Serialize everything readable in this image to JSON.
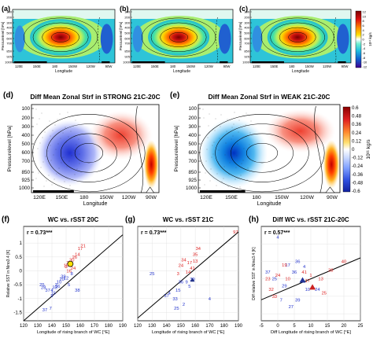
{
  "panels_top": [
    {
      "letter": "(a)",
      "title": "Mean Zonal Strf in ERA-Interim in 20C",
      "ylabel": "Pressurelevel [hPa]",
      "xlabel": "Longitude",
      "yticks": [
        "100",
        "200",
        "300",
        "400",
        "500",
        "600",
        "700",
        "850",
        "925",
        "1000"
      ],
      "xticks": [
        "120E",
        "150E",
        "180",
        "150W",
        "120W",
        "90W"
      ]
    },
    {
      "letter": "(b)",
      "title": "Mean Zonal Strf in STRONG in 20C",
      "ylabel": "Pressurelevel [hPa]",
      "xlabel": "Longitude",
      "yticks": [
        "100",
        "200",
        "300",
        "400",
        "500",
        "600",
        "700",
        "850",
        "925",
        "1000"
      ],
      "xticks": [
        "120E",
        "150E",
        "180",
        "150W",
        "120W",
        "90W"
      ]
    },
    {
      "letter": "(c)",
      "title": "Mean Zonal Strf in WEAK in 20C",
      "ylabel": "Pressurelevel [hPa]",
      "xlabel": "Longitude",
      "yticks": [
        "100",
        "200",
        "300",
        "400",
        "500",
        "600",
        "700",
        "850",
        "925",
        "1000"
      ],
      "xticks": [
        "120E",
        "150E",
        "180",
        "150W",
        "120W",
        "90W"
      ]
    }
  ],
  "colorbar_top": {
    "ticks": [
      "12",
      "10",
      "8",
      "6",
      "4",
      "2",
      "0",
      "-2",
      "-4",
      "-6",
      "-8",
      "-10",
      "-12"
    ],
    "unit_exp": "10¹¹ kg/s"
  },
  "panels_mid": [
    {
      "letter": "(d)",
      "title": "Diff Mean Zonal Strf in STRONG 21C-20C",
      "ylabel": "Pressurelevel [hPa]",
      "xlabel": "Longitude",
      "yticks": [
        "100",
        "200",
        "300",
        "400",
        "500",
        "600",
        "700",
        "850",
        "925",
        "1000"
      ],
      "xticks": [
        "120E",
        "150E",
        "180",
        "150W",
        "120W",
        "90W"
      ]
    },
    {
      "letter": "(e)",
      "title": "Diff Mean Zonal Strf in WEAK 21C-20C",
      "ylabel": "Pressurelevel [hPa]",
      "xlabel": "Longitude",
      "yticks": [
        "100",
        "200",
        "300",
        "400",
        "500",
        "600",
        "700",
        "850",
        "925",
        "1000"
      ],
      "xticks": [
        "120E",
        "150E",
        "180",
        "150W",
        "120W",
        "90W"
      ]
    }
  ],
  "colorbar_mid": {
    "ticks": [
      "0.6",
      "0.48",
      "0.36",
      "0.24",
      "0.12",
      "0",
      "-0.12",
      "-0.24",
      "-0.36",
      "-0.48",
      "-0.6"
    ],
    "unit": "10¹¹ kg/s"
  },
  "chart_data": [
    {
      "type": "scatter",
      "panel": "(f)",
      "title": "WC vs. rSST 20C",
      "annotation": "r = 0.73***",
      "xlabel": "Longitude of rising branch of WC [°E]",
      "ylabel": "Relative SST in Nino3.4 [K]",
      "xlim": [
        120,
        190
      ],
      "ylim": [
        -1.8,
        1.6
      ],
      "xticks": [
        "120",
        "130",
        "140",
        "150",
        "160",
        "170",
        "180",
        "190"
      ],
      "yticks": [
        "1",
        "0.5",
        "0",
        "-0.5",
        "-1",
        "-1.5"
      ],
      "series": [
        {
          "color": "#2233cc",
          "points": [
            [
              133,
              -0.5,
              "25"
            ],
            [
              134,
              -0.6,
              "28"
            ],
            [
              137,
              -0.7,
              "37"
            ],
            [
              140,
              -0.9,
              "9"
            ],
            [
              140,
              -0.7,
              "4"
            ],
            [
              141,
              -0.8,
              "15"
            ],
            [
              142,
              -0.6,
              "33"
            ],
            [
              143,
              -0.5,
              "2"
            ],
            [
              144,
              -0.55,
              "36"
            ],
            [
              145,
              -0.4,
              "10"
            ],
            [
              147,
              -0.3,
              "20"
            ],
            [
              148,
              -0.2,
              "39"
            ],
            [
              135,
              -1.4,
              "37"
            ],
            [
              139,
              -1.35,
              "7"
            ],
            [
              152,
              -0.5,
              "5"
            ],
            [
              150,
              -0.25,
              "12"
            ],
            [
              154,
              -0.1,
              "8"
            ],
            [
              158,
              -0.7,
              "38"
            ]
          ]
        },
        {
          "color": "#dd2222",
          "points": [
            [
              150,
              0.2,
              "19"
            ],
            [
              152,
              0.3,
              "31"
            ],
            [
              154,
              0.4,
              "30"
            ],
            [
              156,
              0.5,
              "26"
            ],
            [
              158,
              0.6,
              "14"
            ],
            [
              160,
              0.8,
              "17"
            ],
            [
              162,
              0.9,
              "21"
            ],
            [
              152,
              0.0,
              "16"
            ],
            [
              150,
              0.15,
              "3"
            ],
            [
              155,
              0.1,
              "24"
            ]
          ]
        },
        {
          "color": "#000000",
          "points": [
            [
              153,
              0.25,
              "ERA"
            ]
          ]
        }
      ]
    },
    {
      "type": "scatter",
      "panel": "(g)",
      "title": "WC vs. rSST 21C",
      "annotation": "r = 0.73***",
      "xlabel": "Longitude of rising branch of WC [°E]",
      "ylabel": "",
      "xlim": [
        120,
        190
      ],
      "ylim": [
        -1.8,
        1.6
      ],
      "xticks": [
        "120",
        "130",
        "140",
        "150",
        "160",
        "170",
        "180",
        "190"
      ],
      "yticks": [],
      "series": [
        {
          "color": "#2233cc",
          "points": [
            [
              130,
              -0.1,
              "25"
            ],
            [
              140,
              -0.9,
              "37"
            ],
            [
              142,
              -0.8,
              "4"
            ],
            [
              146,
              -1.0,
              "33"
            ],
            [
              148,
              -0.7,
              "15"
            ],
            [
              150,
              -0.4,
              "36"
            ],
            [
              154,
              -0.4,
              "9"
            ],
            [
              156,
              -0.55,
              "5"
            ],
            [
              158,
              -0.3,
              "39"
            ],
            [
              147,
              -1.35,
              "25"
            ],
            [
              152,
              -1.2,
              "2"
            ],
            [
              170,
              -1.0,
              "4"
            ]
          ]
        },
        {
          "color": "#dd2222",
          "points": [
            [
              150,
              0.2,
              "24"
            ],
            [
              152,
              0.4,
              "34"
            ],
            [
              156,
              0.3,
              "17"
            ],
            [
              158,
              0.1,
              "41"
            ],
            [
              160,
              0.35,
              "13"
            ],
            [
              155,
              -0.05,
              "14"
            ],
            [
              162,
              0.8,
              "34"
            ],
            [
              160,
              0.6,
              "35"
            ],
            [
              188,
              1.4,
              "97"
            ],
            [
              148,
              -0.1,
              "3"
            ]
          ]
        }
      ]
    },
    {
      "type": "scatter",
      "panel": "(h)",
      "title": "Diff WC vs. rSST 21C-20C",
      "annotation": "r = 0.57***",
      "xlabel": "Diff Longitude of rising branch of WC [°E]",
      "ylabel": "Diff relative SST in Nino3.4 [K]",
      "xlim": [
        -5,
        25
      ],
      "ylim": [
        -1.2,
        1.5
      ],
      "xticks": [
        "-5",
        "0",
        "5",
        "10",
        "15",
        "20",
        "25"
      ],
      "yticks": [],
      "series": [
        {
          "color": "#2233cc",
          "points": [
            [
              0,
              1.2,
              "4"
            ],
            [
              3,
              0.4,
              "17"
            ],
            [
              -3,
              0.2,
              "37"
            ],
            [
              -1,
              0.0,
              "25"
            ],
            [
              2,
              -0.2,
              "29"
            ],
            [
              5,
              0.2,
              "36"
            ],
            [
              6,
              0.5,
              "36"
            ],
            [
              8,
              0.35,
              "4"
            ],
            [
              9,
              -0.3,
              "10"
            ],
            [
              4,
              -0.8,
              "27"
            ],
            [
              1,
              -0.6,
              "7"
            ],
            [
              6,
              -0.6,
              "39"
            ],
            [
              12,
              -0.3,
              "24"
            ]
          ]
        },
        {
          "color": "#dd2222",
          "points": [
            [
              -3,
              0.0,
              "23"
            ],
            [
              -2,
              -0.3,
              "32"
            ],
            [
              0,
              0.1,
              "24"
            ],
            [
              2,
              0.4,
              "19"
            ],
            [
              3,
              0.0,
              "10"
            ],
            [
              8,
              0.2,
              "41"
            ],
            [
              9,
              -0.05,
              "17"
            ],
            [
              10,
              0.1,
              "1"
            ],
            [
              13,
              0.0,
              "13"
            ],
            [
              16,
              0.25,
              "38"
            ],
            [
              14,
              -0.4,
              "25"
            ],
            [
              -1,
              -0.5,
              "33"
            ],
            [
              20,
              0.5,
              "40"
            ]
          ]
        }
      ]
    }
  ]
}
